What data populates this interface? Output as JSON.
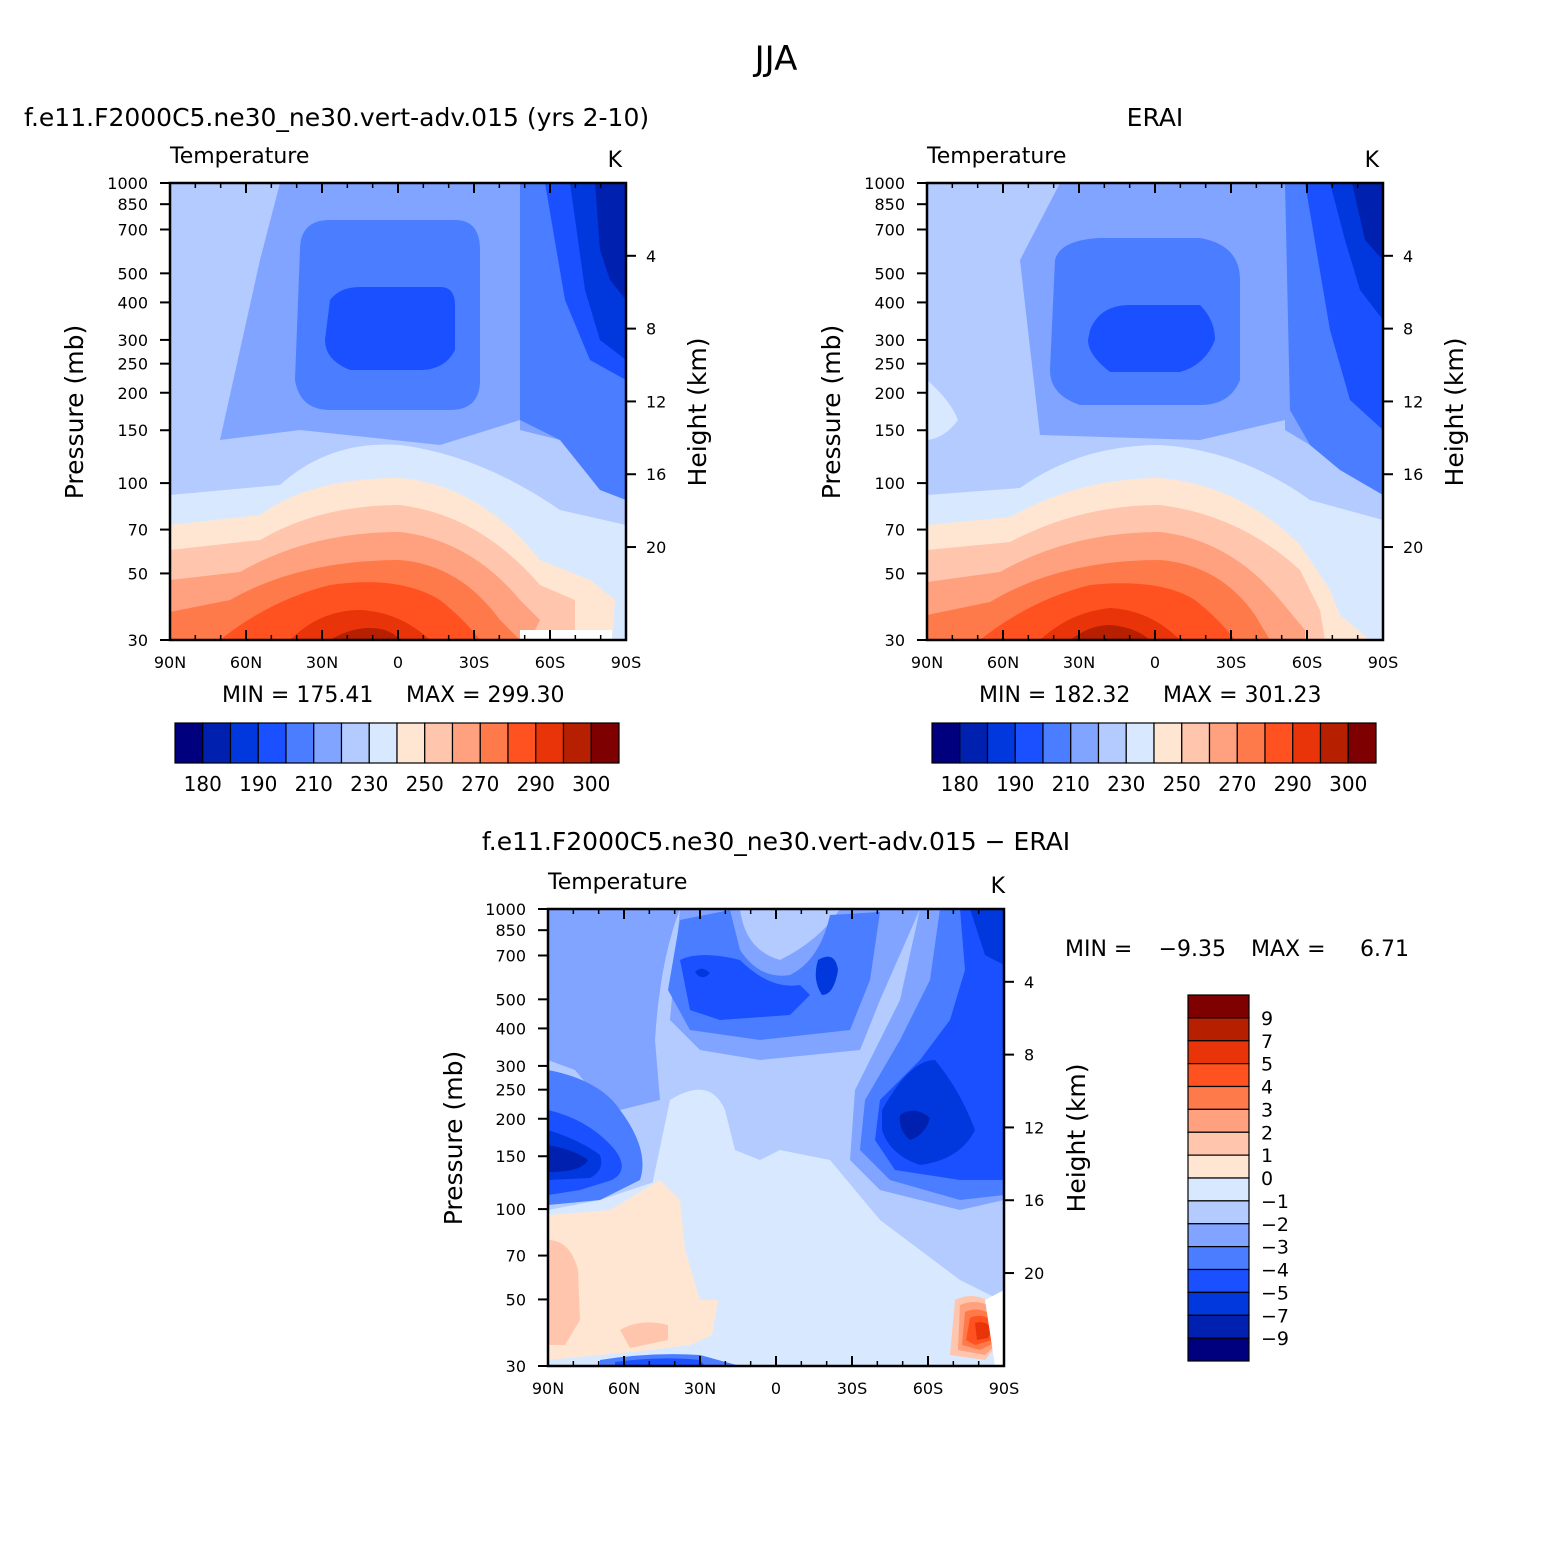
{
  "page_title": "JJA",
  "palette": {
    "levels": [
      "#00007f",
      "#0020b0",
      "#0038dd",
      "#1a50ff",
      "#4a7dff",
      "#80a4ff",
      "#b3cbff",
      "#d8e9ff",
      "#ffe6d3",
      "#ffc6ad",
      "#ffa07e",
      "#ff7a4a",
      "#ff5220",
      "#e83408",
      "#b61f00",
      "#7f0000"
    ],
    "diff": [
      "#00007f",
      "#0020b0",
      "#0038dd",
      "#1a50ff",
      "#4a7dff",
      "#80a4ff",
      "#b3cbff",
      "#d8e9ff",
      "#ffe6d3",
      "#ffc6ad",
      "#ffa07e",
      "#ff7a4a",
      "#ff5220",
      "#e83408",
      "#b61f00",
      "#7f0000"
    ]
  },
  "chart_data": [
    {
      "type": "heatmap",
      "id": "model",
      "title": "f.e11.F2000C5.ne30_ne30.vert-adv.015 (yrs 2-10)",
      "variable": "Temperature",
      "units": "K",
      "ylabel": "Pressure (mb)",
      "y2label": "Height (km)",
      "xticks": [
        "90N",
        "60N",
        "30N",
        "0",
        "30S",
        "60S",
        "90S"
      ],
      "yticks": [
        "30",
        "50",
        "70",
        "100",
        "150",
        "200",
        "250",
        "300",
        "400",
        "500",
        "700",
        "850",
        "1000"
      ],
      "y2ticks": [
        "4",
        "8",
        "12",
        "16",
        "20"
      ],
      "min_label": "MIN = 175.41",
      "max_label": "MAX = 299.30",
      "min": 175.41,
      "max": 299.3,
      "colorbar_labels": [
        "180",
        "190",
        "210",
        "230",
        "250",
        "270",
        "290",
        "300"
      ]
    },
    {
      "type": "heatmap",
      "id": "obs",
      "title": "ERAI",
      "variable": "Temperature",
      "units": "K",
      "ylabel": "Pressure (mb)",
      "y2label": "Height (km)",
      "xticks": [
        "90N",
        "60N",
        "30N",
        "0",
        "30S",
        "60S",
        "90S"
      ],
      "yticks": [
        "30",
        "50",
        "70",
        "100",
        "150",
        "200",
        "250",
        "300",
        "400",
        "500",
        "700",
        "850",
        "1000"
      ],
      "y2ticks": [
        "4",
        "8",
        "12",
        "16",
        "20"
      ],
      "min_label": "MIN = 182.32",
      "max_label": "MAX = 301.23",
      "min": 182.32,
      "max": 301.23,
      "colorbar_labels": [
        "180",
        "190",
        "210",
        "230",
        "250",
        "270",
        "290",
        "300"
      ]
    },
    {
      "type": "heatmap",
      "id": "diff",
      "title": "f.e11.F2000C5.ne30_ne30.vert-adv.015 − ERAI",
      "variable": "Temperature",
      "units": "K",
      "ylabel": "Pressure (mb)",
      "y2label": "Height (km)",
      "xticks": [
        "90N",
        "60N",
        "30N",
        "0",
        "30S",
        "60S",
        "90S"
      ],
      "yticks": [
        "30",
        "50",
        "70",
        "100",
        "150",
        "200",
        "250",
        "300",
        "400",
        "500",
        "700",
        "850",
        "1000"
      ],
      "y2ticks": [
        "4",
        "8",
        "12",
        "16",
        "20"
      ],
      "min_label": "MIN =",
      "min_value": "−9.35",
      "max_label": "MAX =",
      "max_value": "6.71",
      "min": -9.35,
      "max": 6.71,
      "colorbar_labels": [
        "9",
        "7",
        "5",
        "4",
        "3",
        "2",
        "1",
        "0",
        "−1",
        "−2",
        "−3",
        "−4",
        "−5",
        "−7",
        "−9"
      ]
    }
  ]
}
